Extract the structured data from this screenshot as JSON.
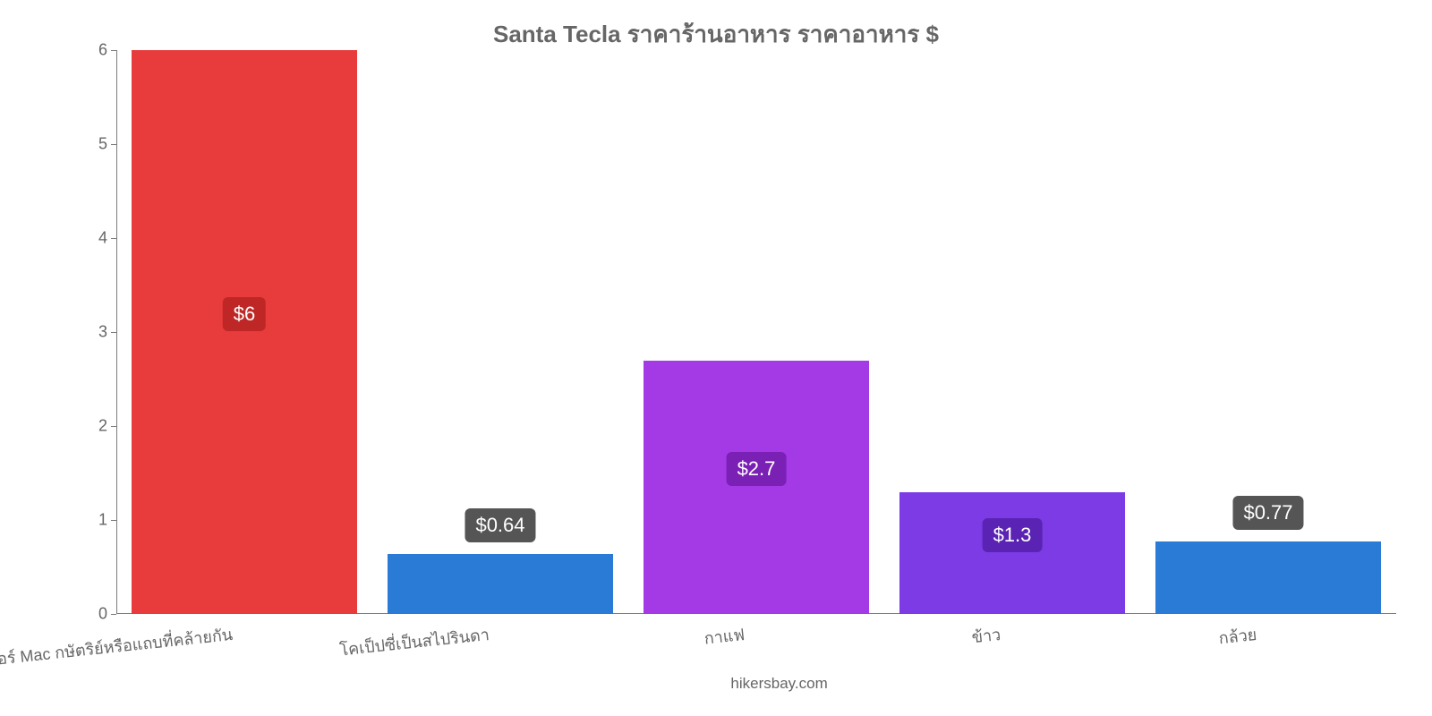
{
  "chart": {
    "type": "bar",
    "title": "Santa Tecla ราคาร้านอาหาร ราคาอาหาร $",
    "title_color": "#666666",
    "title_fontsize": 26,
    "background_color": "#ffffff",
    "text_color": "#666666",
    "axis_color": "#7b7b7b",
    "y": {
      "min": 0,
      "max": 6,
      "step": 1,
      "label_fontsize": 18
    },
    "categories": [
      {
        "label": "เบอร์เกอร์ Mac กษัตริย์หรือแถบที่คล้ายกัน",
        "value": 6,
        "display": "$6",
        "color": "#e83b3b",
        "badge_bg": "#bf2727"
      },
      {
        "label": "โคเป็ปซี่เป็นสไปรินดา",
        "value": 0.64,
        "display": "$0.64",
        "color": "#2a7bd6",
        "badge_bg": "#555555"
      },
      {
        "label": "กาแฟ",
        "value": 2.7,
        "display": "$2.7",
        "color": "#a43ae6",
        "badge_bg": "#7a20b5"
      },
      {
        "label": "ข้าว",
        "value": 1.3,
        "display": "$1.3",
        "color": "#7d3be6",
        "badge_bg": "#5a23b3"
      },
      {
        "label": "กล้วย",
        "value": 0.77,
        "display": "$0.77",
        "color": "#2a7bd6",
        "badge_bg": "#555555"
      }
    ],
    "category_label_fontsize": 18,
    "value_badge_fontsize": 22,
    "bar_width_ratio": 0.88,
    "attribution": "hikersbay.com",
    "attribution_fontsize": 17
  }
}
